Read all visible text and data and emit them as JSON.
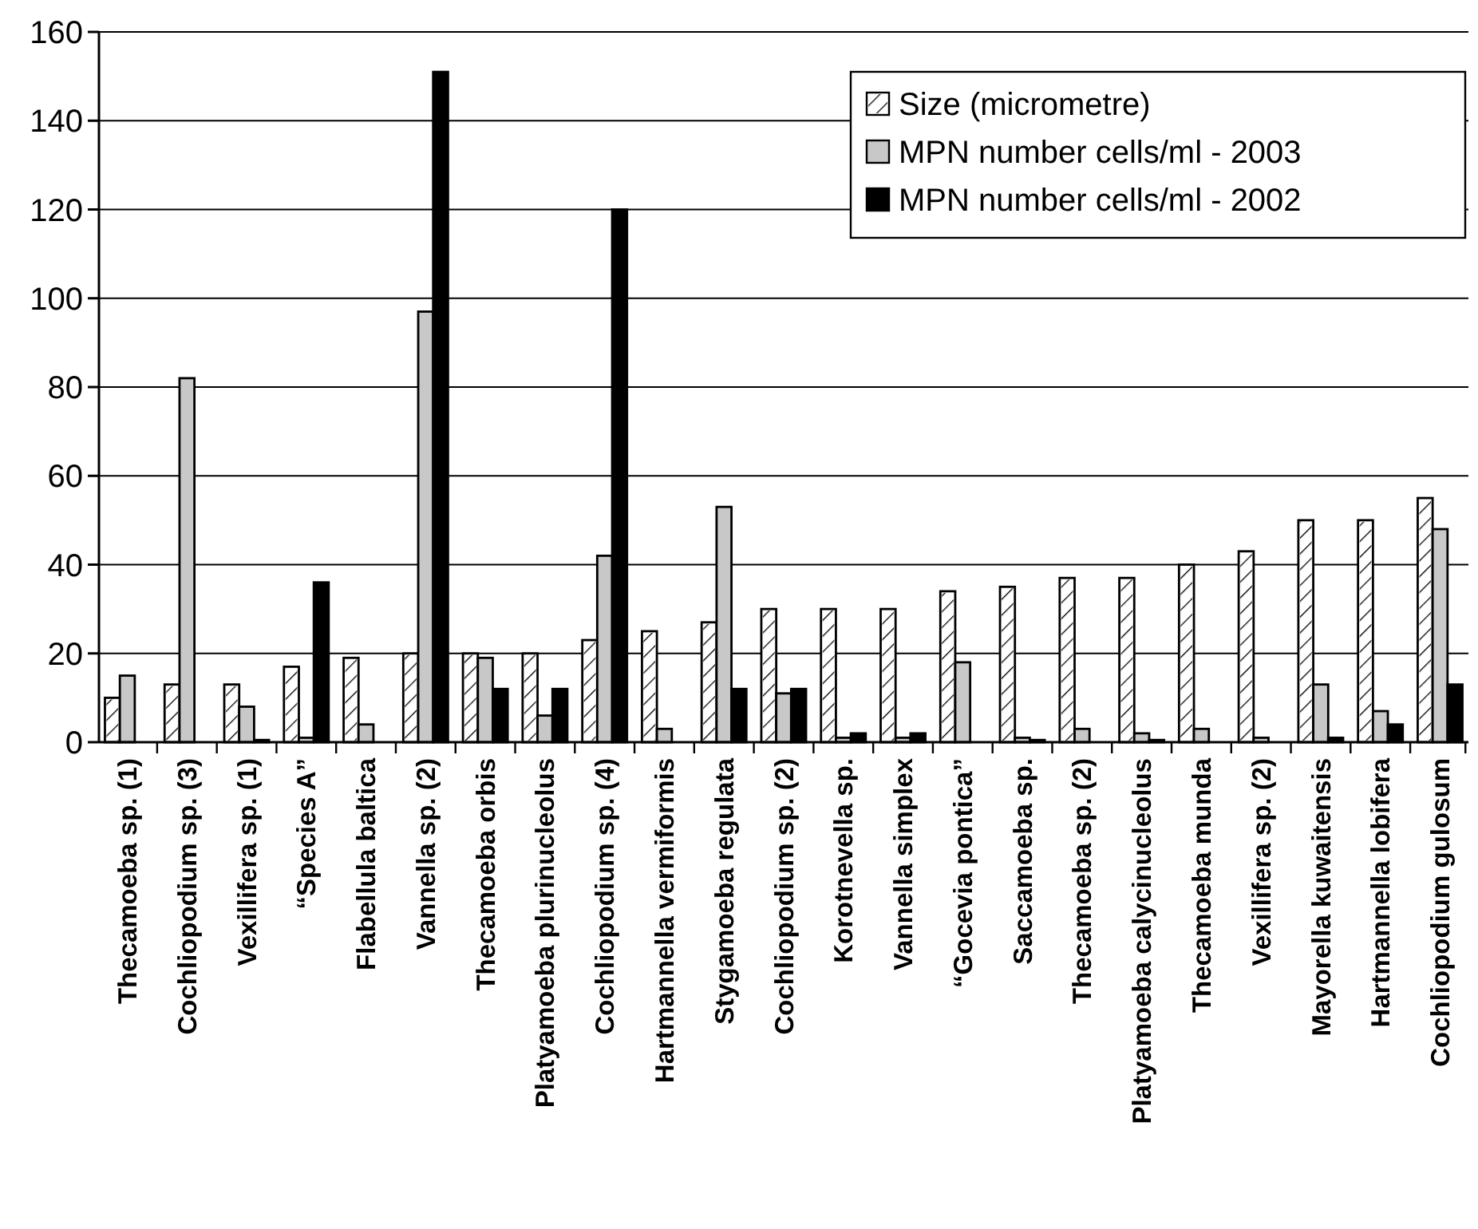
{
  "chart_data": {
    "type": "bar",
    "categories": [
      "Thecamoeba sp. (1)",
      "Cochliopodium sp. (3)",
      "Vexillifera sp. (1)",
      "“Species A”",
      "Flabellula baltica",
      "Vannella sp. (2)",
      "Thecamoeba orbis",
      "Platyamoeba plurinucleolus",
      "Cochliopodium sp. (4)",
      "Hartmannella vermiformis",
      "Stygamoeba regulata",
      "Cochliopodium sp. (2)",
      "Korotnevella sp.",
      "Vannella simplex",
      "“Gocevia pontica”",
      "Saccamoeba sp.",
      "Thecamoeba sp. (2)",
      "Platyamoeba calycinucleolus",
      "Thecamoeba munda",
      "Vexillifera sp. (2)",
      "Mayorella kuwaitensis",
      "Hartmannella lobifera",
      "Cochliopodium gulosum"
    ],
    "series": [
      {
        "name": "Size (micrometre)",
        "color": "#ffffff",
        "values": [
          10,
          13,
          13,
          17,
          19,
          20,
          20,
          20,
          23,
          25,
          27,
          30,
          30,
          30,
          34,
          35,
          37,
          37,
          40,
          43,
          50,
          50,
          55
        ]
      },
      {
        "name": "MPN number cells/ml - 2003",
        "color": "#c8c8c8",
        "values": [
          15,
          82,
          8,
          1,
          4,
          97,
          19,
          6,
          42,
          3,
          53,
          11,
          1,
          1,
          18,
          1,
          3,
          2,
          3,
          1,
          13,
          7,
          48
        ]
      },
      {
        "name": "MPN number cells/ml - 2002",
        "color": "#000000",
        "values": [
          0,
          0,
          0.5,
          36,
          0,
          151,
          12,
          12,
          120,
          0,
          12,
          12,
          2,
          2,
          0,
          0.5,
          0,
          0.5,
          0,
          0,
          1,
          4,
          13
        ]
      }
    ],
    "ylim": [
      0,
      160
    ],
    "yticks": [
      0,
      20,
      40,
      60,
      80,
      100,
      120,
      140,
      160
    ],
    "grid": "y",
    "legend": "top right"
  }
}
